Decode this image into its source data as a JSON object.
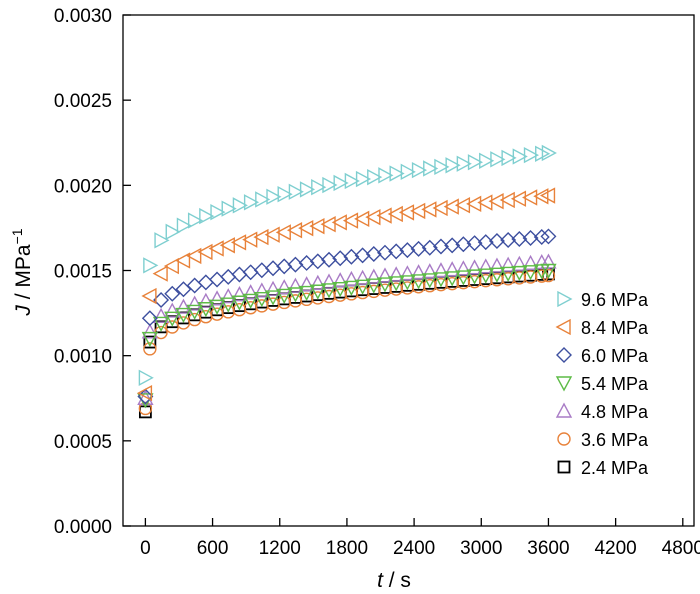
{
  "chart_data": {
    "type": "scatter",
    "xlabel_italic": "t",
    "xlabel_rest": " / s",
    "ylabel_italic": "J",
    "ylabel_rest": " / MPa",
    "ylabel_sup": "−1",
    "xlim": [
      -200,
      4900
    ],
    "ylim": [
      0,
      0.003
    ],
    "xticks": [
      0,
      600,
      1200,
      1800,
      2400,
      3000,
      3600,
      4200,
      4800
    ],
    "xtick_labels": [
      "0",
      "600",
      "1200",
      "1800",
      "2400",
      "3000",
      "3600",
      "4200",
      "4800"
    ],
    "yticks": [
      0,
      0.0005,
      0.001,
      0.0015,
      0.002,
      0.0025,
      0.003
    ],
    "ytick_labels": [
      "0.0000",
      "0.0005",
      "0.0010",
      "0.0015",
      "0.0020",
      "0.0025",
      "0.0030"
    ],
    "grid": false,
    "legend_position": "right",
    "time_points": [
      0,
      40,
      140,
      240,
      340,
      440,
      540,
      640,
      740,
      840,
      940,
      1040,
      1140,
      1240,
      1340,
      1440,
      1540,
      1640,
      1740,
      1840,
      1940,
      2040,
      2140,
      2240,
      2340,
      2440,
      2540,
      2640,
      2740,
      2840,
      2940,
      3040,
      3140,
      3240,
      3340,
      3440,
      3540,
      3600
    ],
    "series": [
      {
        "name": "9.6 MPa",
        "marker": "triangle-right",
        "color": "#7fcfd0",
        "j0": 0.00087,
        "j1": 0.00153,
        "a": 0.00066,
        "b": 0.00033
      },
      {
        "name": "8.4 MPa",
        "marker": "triangle-left",
        "color": "#e8823a",
        "j0": 0.00078,
        "j1": 0.00135,
        "a": 0.00059,
        "b": 0.00022
      },
      {
        "name": "6.0 MPa",
        "marker": "diamond",
        "color": "#3d4f9f",
        "j0": 0.00076,
        "j1": 0.00122,
        "a": 0.00048,
        "b": 0.00016
      },
      {
        "name": "5.4 MPa",
        "marker": "triangle-down",
        "color": "#5dbb46",
        "j0": 0.00074,
        "j1": 0.0011,
        "a": 0.0004,
        "b": 0.00012
      },
      {
        "name": "4.8 MPa",
        "marker": "triangle-up",
        "color": "#a97cc6",
        "j0": 0.00075,
        "j1": 0.00114,
        "a": 0.00041,
        "b": 0.00014
      },
      {
        "name": "3.6 MPa",
        "marker": "circle",
        "color": "#e8823a",
        "j0": 0.00069,
        "j1": 0.00104,
        "a": 0.00043,
        "b": 0.00013
      },
      {
        "name": "2.4 MPa",
        "marker": "square",
        "color": "#000000",
        "j0": 0.00067,
        "j1": 0.00108,
        "a": 0.0004,
        "b": 0.00015
      }
    ]
  }
}
